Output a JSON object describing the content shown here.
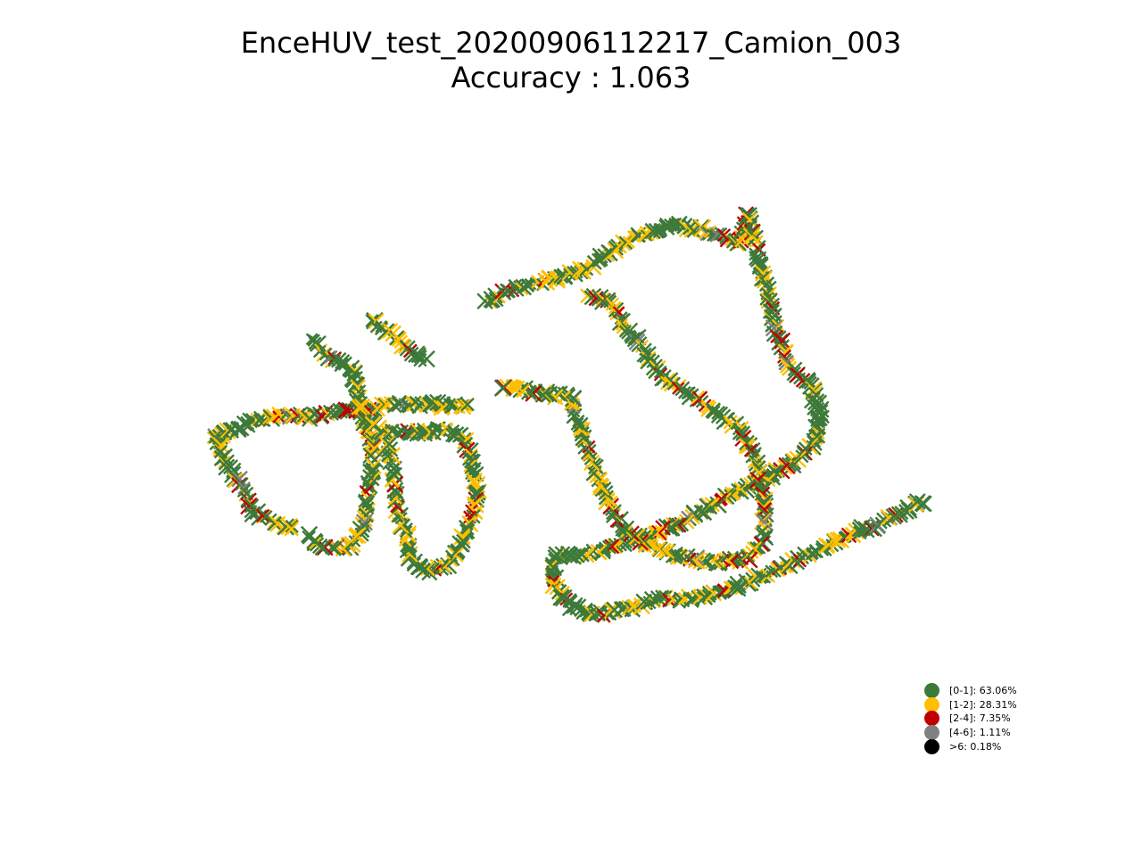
{
  "chart_data": {
    "type": "scatter",
    "title": "EnceHUV_test_20200906112217_Camion_003",
    "subtitle": "Accuracy : 1.063",
    "xlabel": "",
    "ylabel": "",
    "axes_visible": false,
    "grid": false,
    "marker": "x",
    "legend_position": "bottom-right",
    "legend": [
      {
        "label": "[0-1]: 63.06%",
        "color": "#3d7a3a"
      },
      {
        "label": "[1-2]: 28.31%",
        "color": "#ffbf00"
      },
      {
        "label": "[2-4]: 7.35%",
        "color": "#c00000"
      },
      {
        "label": "[4-6]: 1.11%",
        "color": "#808080"
      },
      {
        "label": ">6: 0.18%",
        "color": "#000000"
      }
    ],
    "track": [
      [
        240,
        490
      ],
      [
        262,
        482
      ],
      [
        290,
        470
      ],
      [
        318,
        465
      ],
      [
        350,
        468
      ],
      [
        375,
        462
      ],
      [
        400,
        460
      ],
      [
        430,
        455
      ],
      [
        470,
        452
      ],
      [
        500,
        455
      ],
      [
        530,
        455
      ],
      [
        405,
        470
      ],
      [
        415,
        490
      ],
      [
        418,
        520
      ],
      [
        412,
        560
      ],
      [
        405,
        600
      ],
      [
        385,
        615
      ],
      [
        360,
        612
      ],
      [
        342,
        600
      ],
      [
        405,
        470
      ],
      [
        430,
        485
      ],
      [
        470,
        485
      ],
      [
        500,
        482
      ],
      [
        520,
        490
      ],
      [
        528,
        515
      ],
      [
        535,
        545
      ],
      [
        530,
        580
      ],
      [
        515,
        615
      ],
      [
        500,
        635
      ],
      [
        478,
        640
      ],
      [
        460,
        628
      ],
      [
        455,
        600
      ],
      [
        445,
        570
      ],
      [
        440,
        530
      ],
      [
        435,
        495
      ],
      [
        350,
        380
      ],
      [
        365,
        400
      ],
      [
        380,
        405
      ],
      [
        395,
        415
      ],
      [
        400,
        440
      ],
      [
        405,
        460
      ],
      [
        415,
        360
      ],
      [
        440,
        375
      ],
      [
        460,
        395
      ],
      [
        478,
        405
      ],
      [
        240,
        490
      ],
      [
        255,
        520
      ],
      [
        270,
        545
      ],
      [
        285,
        575
      ],
      [
        305,
        585
      ],
      [
        330,
        595
      ],
      [
        545,
        340
      ],
      [
        570,
        325
      ],
      [
        600,
        318
      ],
      [
        630,
        310
      ],
      [
        660,
        300
      ],
      [
        690,
        278
      ],
      [
        720,
        262
      ],
      [
        760,
        252
      ],
      [
        800,
        262
      ],
      [
        830,
        272
      ],
      [
        840,
        240
      ],
      [
        850,
        290
      ],
      [
        860,
        330
      ],
      [
        870,
        370
      ],
      [
        885,
        410
      ],
      [
        910,
        435
      ],
      [
        920,
        470
      ],
      [
        910,
        500
      ],
      [
        880,
        525
      ],
      [
        840,
        545
      ],
      [
        800,
        565
      ],
      [
        765,
        585
      ],
      [
        730,
        600
      ],
      [
        700,
        610
      ],
      [
        660,
        620
      ],
      [
        620,
        625
      ],
      [
        660,
        330
      ],
      [
        685,
        340
      ],
      [
        700,
        365
      ],
      [
        720,
        390
      ],
      [
        740,
        420
      ],
      [
        770,
        440
      ],
      [
        800,
        460
      ],
      [
        830,
        480
      ],
      [
        845,
        510
      ],
      [
        855,
        550
      ],
      [
        858,
        600
      ],
      [
        840,
        625
      ],
      [
        800,
        632
      ],
      [
        760,
        625
      ],
      [
        725,
        610
      ],
      [
        700,
        595
      ],
      [
        680,
        560
      ],
      [
        665,
        520
      ],
      [
        650,
        480
      ],
      [
        640,
        445
      ],
      [
        600,
        440
      ],
      [
        560,
        432
      ],
      [
        620,
        625
      ],
      [
        622,
        655
      ],
      [
        640,
        680
      ],
      [
        668,
        690
      ],
      [
        700,
        682
      ],
      [
        740,
        672
      ],
      [
        780,
        672
      ],
      [
        820,
        660
      ],
      [
        860,
        645
      ],
      [
        900,
        625
      ],
      [
        940,
        605
      ],
      [
        980,
        590
      ],
      [
        1020,
        570
      ],
      [
        1038,
        562
      ]
    ]
  },
  "colors": {
    "c0": "#3d7a3a",
    "c1": "#ffbf00",
    "c2": "#c00000",
    "c3": "#808080",
    "c4": "#000000"
  }
}
